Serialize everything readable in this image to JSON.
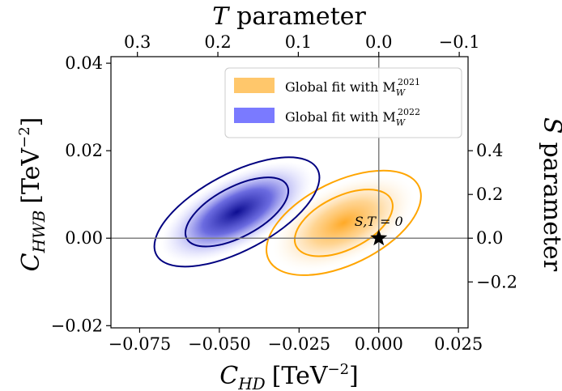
{
  "chart_data": {
    "type": "scatter",
    "title": "",
    "xlabel": {
      "main": "C",
      "sub": "HD",
      "unit": "[TeV",
      "exp": "−2",
      "close": "]"
    },
    "ylabel": {
      "main": "C",
      "sub": "HWB",
      "unit": "[TeV",
      "exp": "−2",
      "close": "]"
    },
    "top_axis_label": {
      "main": "T",
      "rest": "parameter"
    },
    "right_axis_label": {
      "main": "S",
      "rest": "parameter"
    },
    "xlim": [
      -0.084,
      0.028
    ],
    "ylim": [
      -0.0205,
      0.0415
    ],
    "x_ticks": [
      -0.075,
      -0.05,
      -0.025,
      0.0,
      0.025
    ],
    "x_tick_labels": [
      "−0.075",
      "−0.050",
      "−0.025",
      "0.000",
      "0.025"
    ],
    "y_ticks": [
      -0.02,
      0.0,
      0.02,
      0.04
    ],
    "y_tick_labels": [
      "−0.02",
      "0.00",
      "0.02",
      "0.04"
    ],
    "top_ticks_T": [
      0.3,
      0.2,
      0.1,
      0.0,
      -0.1
    ],
    "top_tick_labels": [
      "0.3",
      "0.2",
      "0.1",
      "0.0",
      "−0.1"
    ],
    "right_ticks_S": [
      -0.2,
      0.0,
      0.2,
      0.4
    ],
    "right_tick_labels": [
      "−0.2",
      "0.0",
      "0.2",
      "0.4"
    ],
    "reference_lines": {
      "x": 0.0,
      "y": 0.0
    },
    "reference_point": {
      "label": "S,T = 0",
      "x": 0.0,
      "y": 0.0
    },
    "legend_position": "top-right",
    "series": [
      {
        "name": "Global fit with M",
        "name_sub": "W",
        "name_sup": "2021",
        "color": "#ffa500",
        "fill_color": "#ffc76b",
        "center": [
          -0.011,
          0.0035
        ],
        "angle_deg": -26,
        "inner_semi_axes": [
          0.0166,
          0.0061
        ],
        "outer_semi_axes": [
          0.0262,
          0.0095
        ]
      },
      {
        "name": "Global fit with M",
        "name_sub": "W",
        "name_sup": "2022",
        "color": "#000080",
        "fill_color": "#7a7aff",
        "center": [
          -0.0445,
          0.006
        ],
        "angle_deg": -28,
        "inner_semi_axes": [
          0.0178,
          0.0057
        ],
        "outer_semi_axes": [
          0.0286,
          0.0088
        ]
      }
    ]
  }
}
